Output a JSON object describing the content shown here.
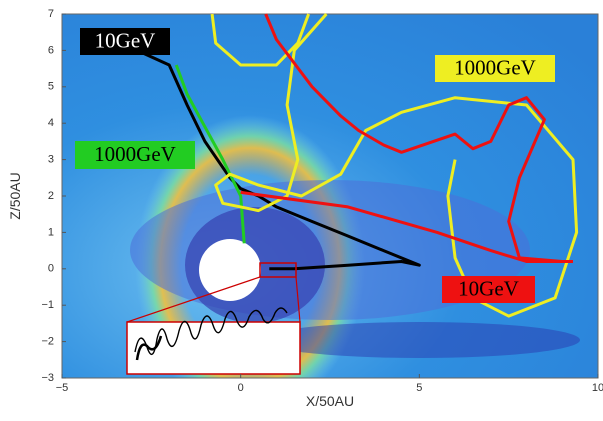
{
  "chart_data": {
    "type": "line",
    "x_label": "X/50AU",
    "y_label": "Z/50AU",
    "xlim": [
      -5,
      10
    ],
    "ylim": [
      -3,
      7
    ],
    "xticks": [
      {
        "value": -5,
        "label": "−5"
      },
      0,
      5,
      10
    ],
    "yticks": [
      {
        "value": -3,
        "label": "−3"
      },
      {
        "value": -2,
        "label": "−2"
      },
      {
        "value": -1,
        "label": "−1"
      },
      0,
      1,
      2,
      3,
      4,
      5,
      6,
      7
    ],
    "series": [
      {
        "name": "10GeV",
        "color": "#000000",
        "x": [
          -2.9,
          -2.0,
          -1.5,
          -1.0,
          -0.3,
          0.0,
          0.5,
          1.0,
          2.0,
          3.0,
          4.0,
          5.0,
          4.5,
          3.0,
          1.5,
          0.8
        ],
        "y": [
          6.0,
          5.6,
          4.5,
          3.5,
          2.5,
          2.2,
          2.0,
          1.7,
          1.3,
          0.9,
          0.5,
          0.1,
          0.2,
          0.1,
          0.0,
          0.0
        ]
      },
      {
        "name": "1000GeV",
        "color": "#22cc22",
        "x": [
          -1.8,
          -1.5,
          -1.0,
          -0.5,
          0.0,
          0.1
        ],
        "y": [
          5.6,
          4.8,
          3.9,
          3.0,
          2.0,
          0.7
        ]
      },
      {
        "name": "1000GeV",
        "color": "#eeee22",
        "x": [
          -0.8,
          -0.7,
          0.0,
          1.0,
          1.6,
          1.9,
          null,
          2.4,
          1.5,
          1.3,
          1.6,
          1.3,
          0.5,
          -0.5,
          -0.7,
          -0.3,
          0.5,
          1.7,
          2.8,
          3.5,
          4.5,
          6.0,
          8.0,
          9.3,
          9.4,
          8.8,
          7.5,
          6.5,
          6.0,
          5.8,
          6.0
        ],
        "y": [
          7.0,
          6.2,
          5.6,
          5.6,
          6.2,
          7.0,
          null,
          7.0,
          6.0,
          4.5,
          3.0,
          2.0,
          1.6,
          1.8,
          2.3,
          2.6,
          2.3,
          2.0,
          2.6,
          3.8,
          4.3,
          4.7,
          4.5,
          3.0,
          1.0,
          -0.8,
          -1.3,
          -0.8,
          0.3,
          2.0,
          3.0
        ]
      },
      {
        "name": "10GeV",
        "color": "#ee1111",
        "x": [
          0.7,
          1.0,
          2.0,
          2.8,
          3.3,
          4.0,
          4.5,
          6.0,
          6.5,
          7.0,
          7.5,
          8.0,
          8.5,
          7.8,
          7.5,
          7.8,
          9.0,
          null,
          0.0,
          3.0,
          5.5,
          7.0,
          8.0,
          9.3
        ],
        "y": [
          7.0,
          6.3,
          5.0,
          4.2,
          3.8,
          3.4,
          3.2,
          3.7,
          3.3,
          3.5,
          4.5,
          4.7,
          4.1,
          2.5,
          1.3,
          0.3,
          0.2,
          null,
          2.1,
          1.7,
          1.0,
          0.5,
          0.2,
          0.2
        ]
      }
    ]
  }
}
